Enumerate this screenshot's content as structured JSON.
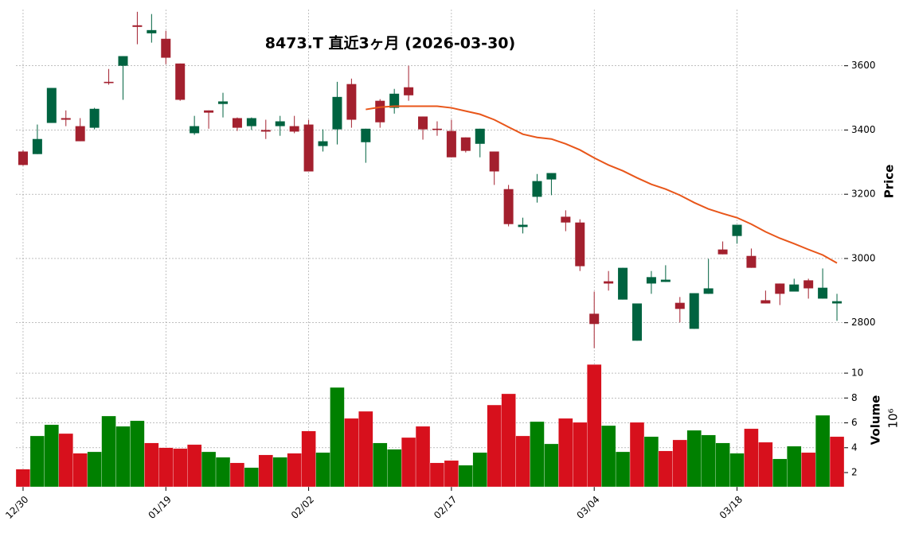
{
  "chart_data": {
    "type": "candlestick",
    "title": "8473.T  直近3ヶ月 (2026-03-30)",
    "categories": [
      "12/30",
      null,
      null,
      null,
      null,
      null,
      null,
      null,
      null,
      null,
      "01/19",
      null,
      null,
      null,
      null,
      null,
      null,
      null,
      null,
      null,
      "02/02",
      null,
      null,
      null,
      null,
      null,
      null,
      null,
      null,
      null,
      "02/17",
      null,
      null,
      null,
      null,
      null,
      null,
      null,
      null,
      null,
      "03/04",
      null,
      null,
      null,
      null,
      null,
      null,
      null,
      null,
      null,
      "03/18",
      null,
      null,
      null,
      null,
      null,
      null,
      null
    ],
    "open": [
      3333,
      3325,
      3422,
      3437,
      3412,
      3407,
      3550,
      3600,
      3726,
      3701,
      3684,
      3607,
      3390,
      3461,
      3481,
      3437,
      3412,
      3400,
      3412,
      3412,
      3417,
      3350,
      3402,
      3543,
      3362,
      3491,
      3469,
      3533,
      3442,
      3404,
      3397,
      3377,
      3357,
      3333,
      3216,
      3098,
      3192,
      3246,
      3130,
      3112,
      2828,
      2929,
      2872,
      2744,
      2922,
      2927,
      2862,
      2781,
      2890,
      3028,
      3070,
      3008,
      2870,
      2922,
      2897,
      2932,
      2875,
      2860
    ],
    "high": [
      3337,
      3417,
      3531,
      3461,
      3437,
      3469,
      3590,
      3630,
      3768,
      3761,
      3709,
      3607,
      3444,
      3461,
      3516,
      3439,
      3439,
      3432,
      3444,
      3444,
      3432,
      3402,
      3550,
      3560,
      3404,
      3496,
      3528,
      3600,
      3442,
      3427,
      3432,
      3377,
      3404,
      3333,
      3229,
      3127,
      3263,
      3266,
      3150,
      3122,
      2897,
      2961,
      2971,
      2860,
      2961,
      2979,
      2880,
      2892,
      2999,
      3053,
      3105,
      3031,
      2900,
      2922,
      2937,
      2937,
      2969,
      2890
    ],
    "low": [
      3289,
      3325,
      3422,
      3412,
      3365,
      3402,
      3541,
      3494,
      3667,
      3672,
      3605,
      3491,
      3385,
      3404,
      3439,
      3397,
      3400,
      3372,
      3382,
      3390,
      3271,
      3333,
      3355,
      3407,
      3298,
      3407,
      3451,
      3491,
      3370,
      3382,
      3315,
      3330,
      3315,
      3229,
      3100,
      3078,
      3174,
      3197,
      3085,
      2961,
      2721,
      2900,
      2872,
      2744,
      2890,
      2927,
      2801,
      2781,
      2890,
      3013,
      3046,
      2971,
      2860,
      2855,
      2897,
      2875,
      2875,
      2806
    ],
    "close": [
      3291,
      3372,
      3531,
      3432,
      3365,
      3466,
      3546,
      3630,
      3721,
      3711,
      3625,
      3494,
      3412,
      3454,
      3489,
      3407,
      3437,
      3395,
      3427,
      3395,
      3271,
      3365,
      3503,
      3432,
      3404,
      3424,
      3513,
      3508,
      3402,
      3400,
      3315,
      3335,
      3404,
      3271,
      3107,
      3105,
      3241,
      3266,
      3112,
      2976,
      2796,
      2922,
      2971,
      2860,
      2942,
      2934,
      2843,
      2892,
      2907,
      3013,
      3105,
      2971,
      2860,
      2890,
      2919,
      2907,
      2909,
      2867
    ],
    "up_color": "#006340",
    "down_color": "#a3202e",
    "series": [
      {
        "color": "#e8561a",
        "values": [
          null,
          null,
          null,
          null,
          null,
          null,
          null,
          null,
          null,
          null,
          null,
          null,
          null,
          null,
          null,
          null,
          null,
          null,
          null,
          null,
          null,
          null,
          null,
          null,
          3464,
          3471,
          3474,
          3474,
          3474,
          3474,
          3469,
          3459,
          3449,
          3432,
          3409,
          3387,
          3377,
          3372,
          3357,
          3338,
          3313,
          3291,
          3273,
          3251,
          3231,
          3216,
          3197,
          3174,
          3154,
          3140,
          3127,
          3107,
          3083,
          3063,
          3046,
          3028,
          3011,
          2986
        ]
      }
    ],
    "ylabel": "Price",
    "ylim": [
      2715,
      3775
    ],
    "yticks": [
      2800,
      3000,
      3200,
      3400,
      3600
    ],
    "grid": true,
    "volume": {
      "label": "Volume",
      "scale_label": "10⁶",
      "values": [
        2.27,
        4.95,
        5.85,
        5.14,
        3.55,
        3.67,
        6.55,
        5.72,
        6.17,
        4.38,
        4.0,
        3.93,
        4.25,
        3.67,
        3.23,
        2.78,
        2.4,
        3.42,
        3.23,
        3.55,
        5.34,
        3.61,
        8.85,
        6.36,
        6.93,
        4.38,
        3.87,
        4.82,
        5.72,
        2.78,
        2.97,
        2.59,
        3.61,
        7.44,
        8.34,
        4.95,
        6.1,
        4.31,
        6.36,
        6.04,
        10.7,
        5.78,
        3.67,
        6.04,
        4.89,
        3.74,
        4.63,
        5.4,
        5.02,
        4.38,
        3.55,
        5.53,
        4.44,
        3.1,
        4.12,
        3.61,
        6.61,
        4.89
      ],
      "up_color": "#008000",
      "down_color": "#d7101c",
      "ylim": [
        0.85,
        10.9
      ],
      "yticks": [
        2,
        4,
        6,
        8,
        10
      ]
    }
  }
}
